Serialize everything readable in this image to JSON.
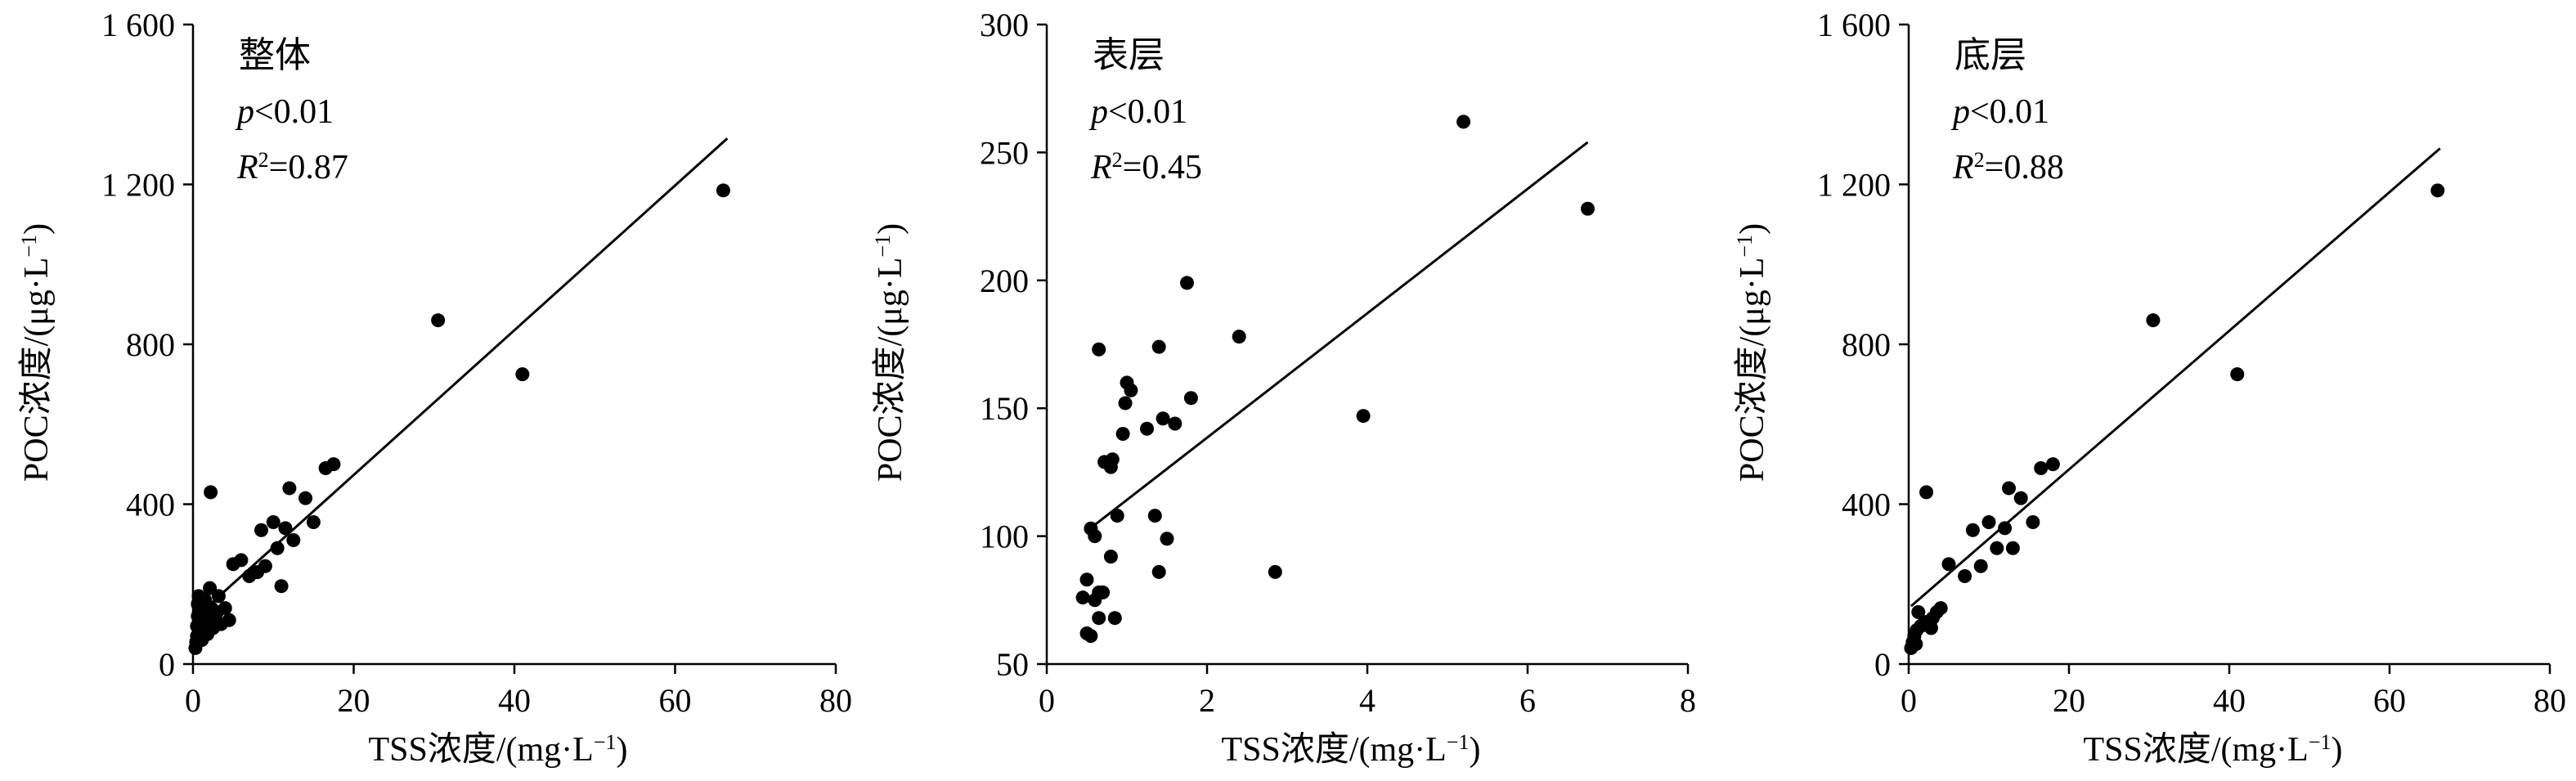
{
  "chart_data": [
    {
      "type": "scatter",
      "title": "整体",
      "stats": {
        "p_prefix": "p",
        "p_suffix": "<0.01",
        "r2_prefix": "R",
        "r2_sup": "2",
        "r2_suffix": "=0.87"
      },
      "xlabel": {
        "text": "TSS浓度/(mg·L",
        "sup": "−1",
        "close": ")"
      },
      "ylabel": {
        "text": "POC浓度/(μg·L",
        "sup": "−1",
        "close": ")"
      },
      "xlim": [
        0,
        80
      ],
      "ylim": [
        0,
        1600
      ],
      "xticks": [
        0,
        20,
        40,
        60,
        80
      ],
      "yticks": [
        0,
        400,
        800,
        1200,
        1600
      ],
      "xtick_labels": [
        "0",
        "20",
        "40",
        "60",
        "80"
      ],
      "ytick_labels": [
        "0",
        "400",
        "800",
        "1 200",
        "1 600"
      ],
      "fit_line": {
        "x": [
          0.5,
          66.5
        ],
        "y": [
          120,
          1315
        ]
      },
      "points": [
        [
          0.3,
          40
        ],
        [
          0.4,
          55
        ],
        [
          0.5,
          70
        ],
        [
          0.5,
          95
        ],
        [
          0.6,
          120
        ],
        [
          0.6,
          150
        ],
        [
          0.7,
          170
        ],
        [
          0.8,
          80
        ],
        [
          0.9,
          110
        ],
        [
          1.0,
          140
        ],
        [
          1.1,
          60
        ],
        [
          1.2,
          90
        ],
        [
          1.3,
          130
        ],
        [
          1.5,
          160
        ],
        [
          1.6,
          100
        ],
        [
          1.8,
          75
        ],
        [
          2.0,
          120
        ],
        [
          2.1,
          190
        ],
        [
          2.3,
          140
        ],
        [
          2.5,
          90
        ],
        [
          2.8,
          110
        ],
        [
          3.0,
          130
        ],
        [
          3.2,
          170
        ],
        [
          3.5,
          100
        ],
        [
          4.0,
          140
        ],
        [
          4.5,
          110
        ],
        [
          2.2,
          430
        ],
        [
          5.0,
          250
        ],
        [
          6.0,
          260
        ],
        [
          7.0,
          220
        ],
        [
          8.0,
          230
        ],
        [
          8.5,
          335
        ],
        [
          9.0,
          245
        ],
        [
          10.0,
          355
        ],
        [
          10.5,
          290
        ],
        [
          11.0,
          195
        ],
        [
          11.5,
          340
        ],
        [
          12.0,
          440
        ],
        [
          12.5,
          310
        ],
        [
          14.0,
          415
        ],
        [
          15.0,
          355
        ],
        [
          16.5,
          490
        ],
        [
          17.5,
          500
        ],
        [
          30.5,
          860
        ],
        [
          41.0,
          725
        ],
        [
          66.0,
          1185
        ]
      ]
    },
    {
      "type": "scatter",
      "title": "表层",
      "stats": {
        "p_prefix": "p",
        "p_suffix": "<0.01",
        "r2_prefix": "R",
        "r2_sup": "2",
        "r2_suffix": "=0.45"
      },
      "xlabel": {
        "text": "TSS浓度/(mg·L",
        "sup": "−1",
        "close": ")"
      },
      "ylabel": {
        "text": "POC浓度/(μg·L",
        "sup": "−1",
        "close": ")"
      },
      "xlim": [
        0,
        8
      ],
      "ylim": [
        50,
        300
      ],
      "xticks": [
        0,
        2,
        4,
        6,
        8
      ],
      "yticks": [
        50,
        100,
        150,
        200,
        250,
        300
      ],
      "xtick_labels": [
        "0",
        "2",
        "4",
        "6",
        "8"
      ],
      "ytick_labels": [
        "50",
        "100",
        "150",
        "200",
        "250",
        "300"
      ],
      "fit_line": {
        "x": [
          0.5,
          6.75
        ],
        "y": [
          102,
          254
        ]
      },
      "points": [
        [
          0.45,
          76
        ],
        [
          0.5,
          83
        ],
        [
          0.5,
          62
        ],
        [
          0.55,
          61
        ],
        [
          0.55,
          103
        ],
        [
          0.6,
          100
        ],
        [
          0.6,
          75
        ],
        [
          0.65,
          78
        ],
        [
          0.65,
          68
        ],
        [
          0.65,
          173
        ],
        [
          0.7,
          78
        ],
        [
          0.72,
          129
        ],
        [
          0.8,
          92
        ],
        [
          0.8,
          127
        ],
        [
          0.82,
          130
        ],
        [
          0.85,
          68
        ],
        [
          0.88,
          108
        ],
        [
          0.95,
          140
        ],
        [
          0.98,
          152
        ],
        [
          1.0,
          160
        ],
        [
          1.05,
          157
        ],
        [
          1.25,
          142
        ],
        [
          1.35,
          108
        ],
        [
          1.4,
          174
        ],
        [
          1.4,
          86
        ],
        [
          1.45,
          146
        ],
        [
          1.5,
          99
        ],
        [
          1.6,
          144
        ],
        [
          1.75,
          199
        ],
        [
          1.8,
          154
        ],
        [
          2.4,
          178
        ],
        [
          2.85,
          86
        ],
        [
          3.95,
          147
        ],
        [
          5.2,
          262
        ],
        [
          6.75,
          228
        ]
      ]
    },
    {
      "type": "scatter",
      "title": "底层",
      "stats": {
        "p_prefix": "p",
        "p_suffix": "<0.01",
        "r2_prefix": "R",
        "r2_sup": "2",
        "r2_suffix": "=0.88"
      },
      "xlabel": {
        "text": "TSS浓度/(mg·L",
        "sup": "−1",
        "close": ")"
      },
      "ylabel": {
        "text": "POC浓度/(μg·L",
        "sup": "−1",
        "close": ")"
      },
      "xlim": [
        0,
        80
      ],
      "ylim": [
        0,
        1600
      ],
      "xticks": [
        0,
        20,
        40,
        60,
        80
      ],
      "yticks": [
        0,
        400,
        800,
        1200,
        1600
      ],
      "xtick_labels": [
        "0",
        "20",
        "40",
        "60",
        "80"
      ],
      "ytick_labels": [
        "0",
        "400",
        "800",
        "1 200",
        "1 600"
      ],
      "fit_line": {
        "x": [
          0.3,
          66.3
        ],
        "y": [
          145,
          1290
        ]
      },
      "points": [
        [
          0.3,
          40
        ],
        [
          0.5,
          55
        ],
        [
          0.7,
          70
        ],
        [
          0.9,
          50
        ],
        [
          1.0,
          85
        ],
        [
          1.2,
          130
        ],
        [
          1.5,
          95
        ],
        [
          2.0,
          105
        ],
        [
          2.2,
          430
        ],
        [
          2.8,
          90
        ],
        [
          3.0,
          115
        ],
        [
          3.5,
          130
        ],
        [
          4.0,
          140
        ],
        [
          5.0,
          250
        ],
        [
          7.0,
          220
        ],
        [
          8.0,
          335
        ],
        [
          9.0,
          245
        ],
        [
          10.0,
          355
        ],
        [
          11.0,
          290
        ],
        [
          12.0,
          340
        ],
        [
          12.5,
          440
        ],
        [
          13.0,
          290
        ],
        [
          14.0,
          415
        ],
        [
          15.5,
          355
        ],
        [
          16.5,
          490
        ],
        [
          18.0,
          500
        ],
        [
          30.5,
          860
        ],
        [
          41.0,
          725
        ],
        [
          66.0,
          1185
        ]
      ]
    }
  ]
}
